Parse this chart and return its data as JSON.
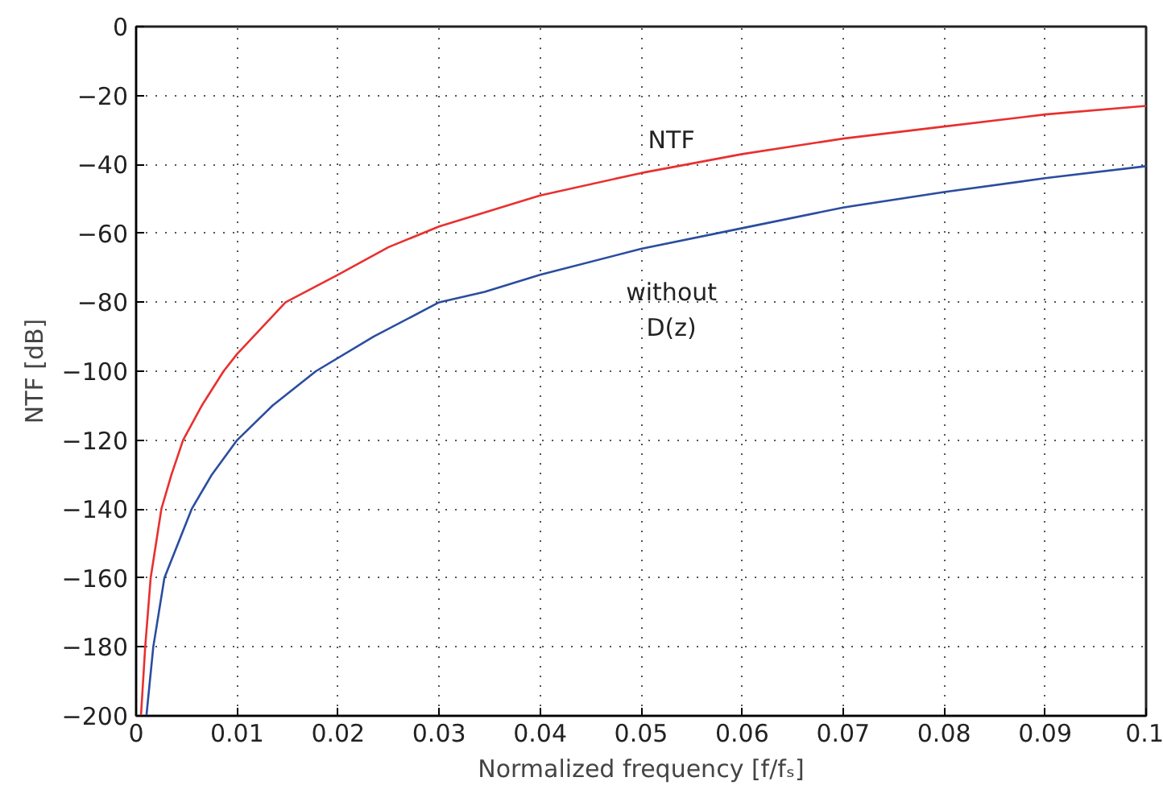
{
  "chart_data": {
    "type": "line",
    "xlabel": "Normalized frequency [f/fₛ]",
    "ylabel": "NTF [dB]",
    "xlim": [
      0,
      0.1
    ],
    "ylim": [
      -200,
      0
    ],
    "xticks": [
      0,
      0.01,
      0.02,
      0.03,
      0.04,
      0.05,
      0.06,
      0.07,
      0.08,
      0.09,
      0.1
    ],
    "yticks": [
      0,
      {
        "value": -20,
        "label": "−20"
      },
      {
        "value": -40,
        "label": "−40"
      },
      {
        "value": -60,
        "label": "−60"
      },
      {
        "value": -80,
        "label": "−80"
      },
      {
        "value": -100,
        "label": "−100"
      },
      {
        "value": -120,
        "label": "−120"
      },
      {
        "value": -140,
        "label": "−140"
      },
      {
        "value": -160,
        "label": "−160"
      },
      {
        "value": -180,
        "label": "−180"
      },
      {
        "value": -200,
        "label": "−200"
      }
    ],
    "grid": true,
    "marker": "none",
    "line_style": "solid",
    "series": [
      {
        "name": "NTF",
        "color": "#e8302f",
        "x": [
          0.00048,
          0.0009,
          0.00144,
          0.0025,
          0.0035,
          0.00465,
          0.0065,
          0.00866,
          0.01,
          0.0148,
          0.02,
          0.025,
          0.03,
          0.04,
          0.05,
          0.06,
          0.07,
          0.08,
          0.09,
          0.1
        ],
        "values": [
          -200,
          -180,
          -160,
          -140,
          -130,
          -120,
          -110,
          -100,
          -95,
          -80,
          -72,
          -64,
          -58,
          -49,
          -42.5,
          -37,
          -32.5,
          -29,
          -25.5,
          -23
        ]
      },
      {
        "name": "without\nD(z)",
        "color": "#2a4d9f",
        "x": [
          0.00102,
          0.0017,
          0.0028,
          0.0055,
          0.0075,
          0.01,
          0.0135,
          0.0178,
          0.0235,
          0.03,
          0.0345,
          0.04,
          0.05,
          0.06,
          0.07,
          0.08,
          0.09,
          0.1
        ],
        "values": [
          -200,
          -180,
          -160,
          -140,
          -130,
          -120,
          -110,
          -100,
          -90,
          -80,
          -77,
          -72,
          -64.5,
          -58.5,
          -52.5,
          -48,
          -44,
          -40.5
        ]
      }
    ]
  }
}
